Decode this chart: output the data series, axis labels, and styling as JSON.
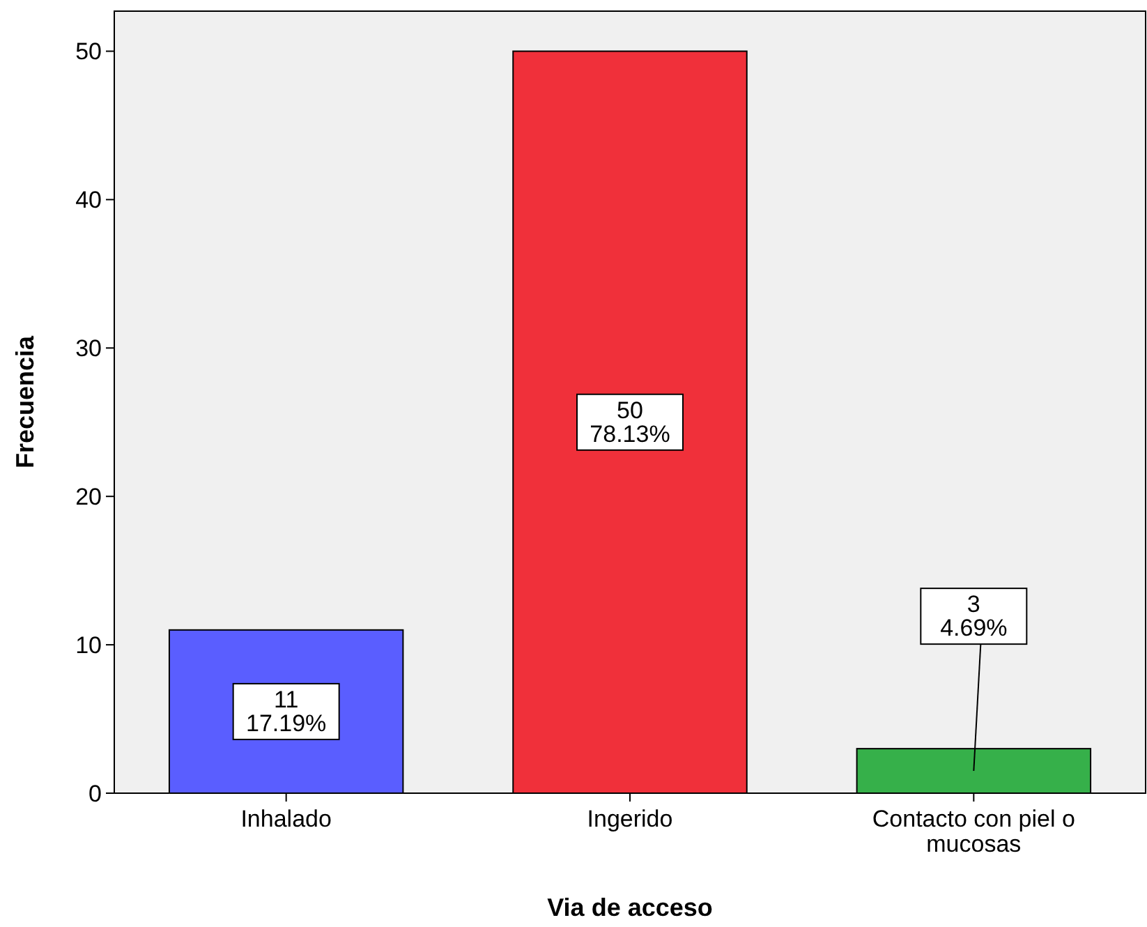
{
  "chart_data": {
    "type": "bar",
    "xlabel": "Via de acceso",
    "ylabel": "Frecuencia",
    "categories": [
      "Inhalado",
      "Ingerido",
      "Contacto con piel o mucosas"
    ],
    "values": [
      11,
      50,
      3
    ],
    "colors": [
      "#5a5eff",
      "#f0303a",
      "#36b04a"
    ],
    "value_labels": [
      "11\n17.19%",
      "50\n78.13%",
      "3\n4.69%"
    ],
    "ylim": [
      0,
      52.7
    ],
    "yticks": [
      0,
      10,
      20,
      30,
      40,
      50
    ],
    "grid": false
  }
}
